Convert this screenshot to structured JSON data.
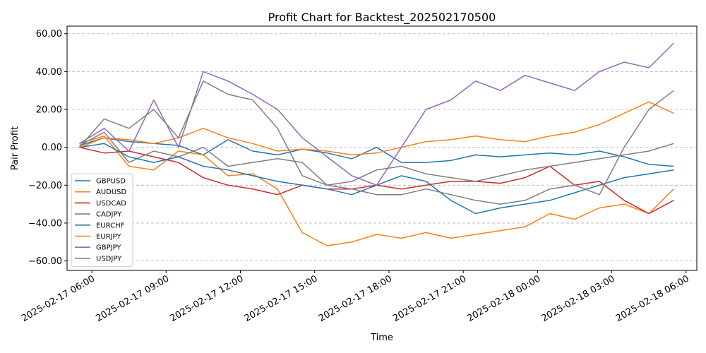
{
  "chart_data": {
    "type": "line",
    "title": "Profit Chart for Backtest_202502170500",
    "xlabel": "Time",
    "ylabel": "Pair Profit",
    "ylim": [
      -65,
      64
    ],
    "yticks": [
      -60,
      -40,
      -20,
      0,
      20,
      40,
      60
    ],
    "ytick_labels": [
      "−60.00",
      "−40.00",
      "−20.00",
      "0.00",
      "20.00",
      "40.00",
      "60.00"
    ],
    "xlim": [
      "2025-02-17 05:00",
      "2025-02-18 06:26"
    ],
    "xticks": [
      "2025-02-17 06:00",
      "2025-02-17 09:00",
      "2025-02-17 12:00",
      "2025-02-17 15:00",
      "2025-02-17 18:00",
      "2025-02-17 21:00",
      "2025-02-18 00:00",
      "2025-02-18 03:00",
      "2025-02-18 06:00"
    ],
    "xtick_labels": [
      "2025-02-17 06:00",
      "2025-02-17 09:00",
      "2025-02-17 12:00",
      "2025-02-17 15:00",
      "2025-02-17 18:00",
      "2025-02-17 21:00",
      "2025-02-18 00:00",
      "2025-02-18 03:00",
      "2025-02-18 06:00"
    ],
    "grid": "y-dashed",
    "legend": "center-left",
    "x": [
      "2025-02-17 05:30",
      "2025-02-17 06:30",
      "2025-02-17 07:30",
      "2025-02-17 08:30",
      "2025-02-17 09:30",
      "2025-02-17 10:30",
      "2025-02-17 11:30",
      "2025-02-17 12:30",
      "2025-02-17 13:30",
      "2025-02-17 14:30",
      "2025-02-17 15:30",
      "2025-02-17 16:30",
      "2025-02-17 17:30",
      "2025-02-17 18:30",
      "2025-02-17 19:30",
      "2025-02-17 20:30",
      "2025-02-17 21:30",
      "2025-02-17 22:30",
      "2025-02-17 23:30",
      "2025-02-18 00:30",
      "2025-02-18 01:30",
      "2025-02-18 02:30",
      "2025-02-18 03:30",
      "2025-02-18 04:30",
      "2025-02-18 05:30"
    ],
    "series": [
      {
        "name": "GBPUSD",
        "color": "#1f77b4",
        "values": [
          1,
          5,
          3,
          2,
          1,
          -4,
          4,
          -2,
          -4,
          -1,
          -3,
          -6,
          0,
          -8,
          -8,
          -7,
          -4,
          -5,
          -4,
          -3,
          -4,
          -2,
          -5,
          -9,
          -10
        ]
      },
      {
        "name": "AUDUSD",
        "color": "#ff7f0e",
        "values": [
          2,
          6,
          -10,
          -12,
          -2,
          -4,
          -15,
          -14,
          -22,
          -45,
          -52,
          -50,
          -46,
          -48,
          -45,
          -48,
          -46,
          -44,
          -42,
          -35,
          -38,
          -32,
          -30,
          -35,
          -22
        ]
      },
      {
        "name": "USDCAD",
        "color": "#d62728",
        "values": [
          0,
          -3,
          -2,
          -5,
          -8,
          -16,
          -20,
          -22,
          -25,
          -20,
          -22,
          -22,
          -20,
          -22,
          -20,
          -18,
          -18,
          -19,
          -16,
          -10,
          -20,
          -18,
          -28,
          -35,
          -28
        ]
      },
      {
        "name": "CADJPY",
        "color": "#7f7f7f",
        "values": [
          1,
          8,
          -8,
          -2,
          -5,
          0,
          -10,
          -8,
          -6,
          -8,
          -20,
          -18,
          -12,
          -10,
          -14,
          -16,
          -18,
          -15,
          -12,
          -10,
          -8,
          -6,
          -4,
          -2,
          2
        ]
      },
      {
        "name": "EURCHF",
        "color": "#1f77b4",
        "values": [
          0,
          2,
          -5,
          -8,
          -5,
          -10,
          -12,
          -15,
          -18,
          -20,
          -22,
          -25,
          -20,
          -15,
          -18,
          -28,
          -35,
          -32,
          -30,
          -28,
          -24,
          -20,
          -16,
          -14,
          -12
        ]
      },
      {
        "name": "EURJPY",
        "color": "#ff7f0e",
        "values": [
          0,
          5,
          4,
          2,
          5,
          10,
          5,
          2,
          -2,
          -1,
          -2,
          -4,
          -3,
          0,
          3,
          4,
          6,
          4,
          3,
          6,
          8,
          12,
          18,
          24,
          18
        ]
      },
      {
        "name": "GBPJPY",
        "color": "#9467bd",
        "values": [
          2,
          10,
          -2,
          25,
          0,
          40,
          35,
          28,
          20,
          5,
          -5,
          -15,
          -20,
          0,
          20,
          25,
          35,
          30,
          38,
          34,
          30,
          40,
          45,
          42,
          55
        ]
      },
      {
        "name": "USDJPY",
        "color": "#7f7f7f",
        "values": [
          0,
          15,
          10,
          20,
          5,
          35,
          28,
          25,
          10,
          -15,
          -20,
          -22,
          -25,
          -25,
          -22,
          -25,
          -28,
          -30,
          -28,
          -22,
          -20,
          -25,
          0,
          20,
          30
        ]
      }
    ]
  }
}
